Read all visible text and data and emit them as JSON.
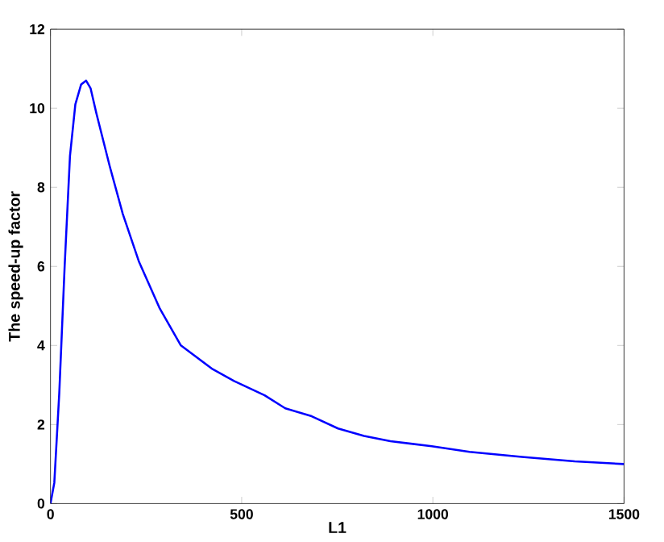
{
  "chart_data": {
    "type": "line",
    "xlabel": "L1",
    "ylabel": "The speed-up factor",
    "x": [
      0,
      10,
      23,
      37,
      51,
      65,
      80,
      93,
      105,
      120,
      155,
      189,
      231,
      286,
      341,
      424,
      480,
      560,
      614,
      683,
      752,
      820,
      889,
      997,
      1096,
      1233,
      1371,
      1500
    ],
    "series": [
      {
        "color": "#0000ff",
        "values": [
          0,
          0.53,
          2.8,
          6.0,
          8.8,
          10.1,
          10.6,
          10.7,
          10.5,
          9.87,
          8.53,
          7.33,
          6.13,
          4.93,
          4.0,
          3.4,
          3.1,
          2.74,
          2.41,
          2.21,
          1.9,
          1.71,
          1.58,
          1.45,
          1.31,
          1.18,
          1.07,
          1.0
        ]
      }
    ],
    "xlim": [
      0,
      1500
    ],
    "ylim": [
      0,
      12
    ],
    "xticks": [
      0,
      500,
      1000,
      1500
    ],
    "yticks": [
      0,
      2,
      4,
      6,
      8,
      10,
      12
    ],
    "marker": "none",
    "line_style": "solid"
  }
}
